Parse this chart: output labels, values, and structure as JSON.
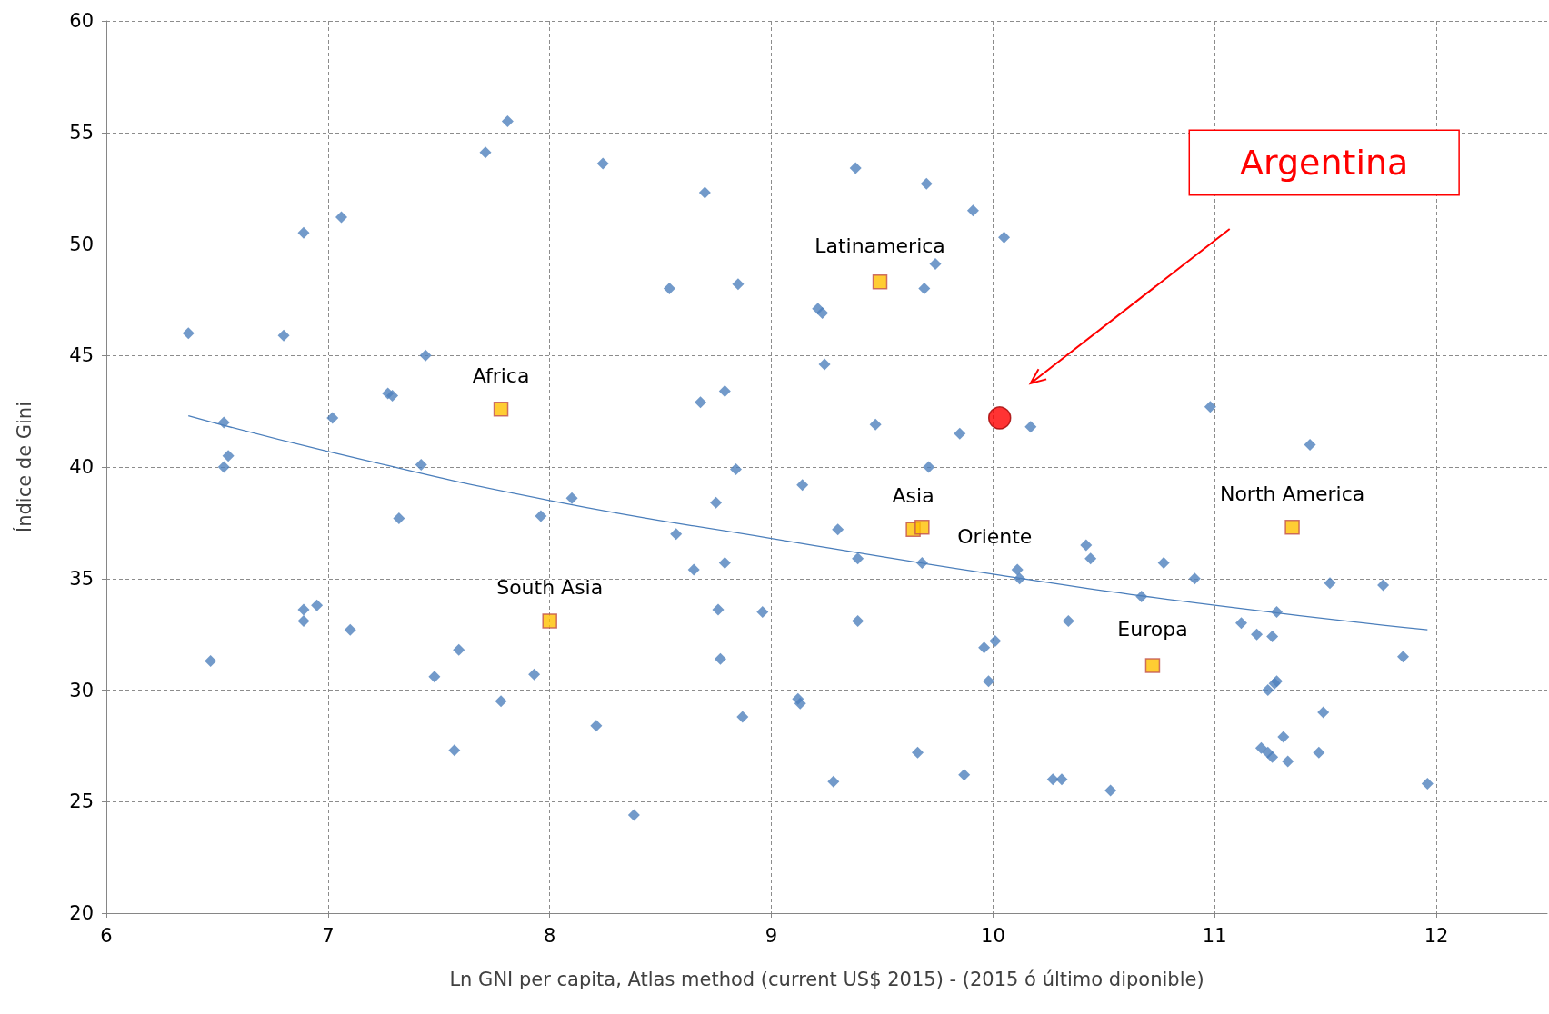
{
  "chart_data": {
    "type": "scatter",
    "xlabel": "Ln GNI per capita, Atlas method (current US$ 2015) - (2015 ó último diponible)",
    "ylabel": "Índice de Gini",
    "xlim": [
      6,
      12.5
    ],
    "xticks": [
      6,
      7,
      8,
      9,
      10,
      11,
      12
    ],
    "ylim": [
      20,
      60
    ],
    "yticks": [
      20,
      25,
      30,
      35,
      40,
      45,
      50,
      55,
      60
    ],
    "grid": true,
    "series": [
      {
        "marker": "diamond",
        "color": "#4f81bd",
        "x": [
          6.37,
          6.53,
          6.55,
          6.53,
          6.47,
          6.89,
          6.8,
          6.89,
          6.89,
          6.95,
          7.02,
          7.06,
          7.1,
          7.27,
          7.29,
          7.44,
          7.42,
          7.32,
          7.48,
          7.59,
          7.57,
          7.71,
          7.81,
          7.78,
          7.93,
          7.96,
          8.1,
          8.24,
          8.21,
          8.38,
          8.54,
          8.57,
          8.7,
          8.68,
          8.79,
          8.85,
          8.84,
          8.75,
          8.65,
          8.79,
          8.76,
          8.77,
          8.87,
          8.96,
          9.14,
          9.21,
          9.23,
          9.24,
          9.3,
          9.12,
          9.13,
          9.28,
          9.38,
          9.39,
          9.39,
          9.47,
          9.7,
          9.69,
          9.74,
          9.71,
          9.68,
          9.66,
          9.91,
          10.05,
          9.85,
          10.17,
          10.11,
          10.12,
          9.96,
          10.01,
          9.98,
          9.87,
          10.27,
          10.31,
          10.34,
          10.42,
          10.44,
          10.53,
          10.67,
          10.77,
          10.91,
          10.98,
          11.12,
          11.19,
          11.26,
          11.28,
          11.24,
          11.27,
          11.28,
          11.21,
          11.24,
          11.26,
          11.31,
          11.33,
          11.43,
          11.49,
          11.47,
          11.52,
          11.76,
          11.85,
          11.96
        ],
        "values": [
          46,
          42,
          40.5,
          40,
          31.3,
          50.5,
          45.9,
          33.6,
          33.1,
          33.8,
          42.2,
          51.2,
          32.7,
          43.3,
          43.2,
          45,
          40.1,
          37.7,
          30.6,
          31.8,
          27.3,
          54.1,
          55.5,
          29.5,
          30.7,
          37.8,
          38.6,
          53.6,
          28.4,
          24.4,
          48,
          37,
          52.3,
          42.9,
          43.4,
          48.2,
          39.9,
          38.4,
          35.4,
          35.7,
          33.6,
          31.4,
          28.8,
          33.5,
          39.2,
          47.1,
          46.9,
          44.6,
          37.2,
          29.6,
          29.4,
          25.9,
          53.4,
          35.9,
          33.1,
          41.9,
          52.7,
          48,
          49.1,
          40,
          35.7,
          27.2,
          51.5,
          50.3,
          41.5,
          41.8,
          35.4,
          35,
          31.9,
          32.2,
          30.4,
          26.2,
          26,
          26,
          33.1,
          36.5,
          35.9,
          25.5,
          34.2,
          35.7,
          35,
          42.7,
          33,
          32.5,
          32.4,
          33.5,
          30,
          30.3,
          30.4,
          27.4,
          27.2,
          27,
          27.9,
          26.8,
          41,
          29,
          27.2,
          34.8,
          34.7,
          31.5,
          25.8
        ]
      },
      {
        "type": "line",
        "marker": "none",
        "color": "#4a7ebb",
        "x": [
          6.37,
          7,
          8,
          9,
          10,
          11,
          11.96
        ],
        "values": [
          42.3,
          40.7,
          38.5,
          36.8,
          35.2,
          33.8,
          32.7
        ]
      },
      {
        "type": "scatter",
        "marker": "square",
        "color": "#ffc000",
        "x": [
          9.49,
          7.78,
          9.64,
          9.68,
          8,
          10.72,
          11.35
        ],
        "values": [
          48.3,
          42.6,
          37.2,
          37.3,
          33.1,
          31.1,
          37.3
        ]
      },
      {
        "type": "scatter",
        "marker": "circle",
        "color": "#ff0000",
        "x": [
          10.03
        ],
        "values": [
          42.2
        ]
      }
    ],
    "annotations": [
      {
        "text": "Latinamerica",
        "x": 9.49,
        "y": 48.3
      },
      {
        "text": "Africa",
        "x": 7.78,
        "y": 42.6
      },
      {
        "text": "Asia",
        "x": 9.64,
        "y": 37.2
      },
      {
        "text": "Oriente",
        "x": 9.68,
        "y": 37.3
      },
      {
        "text": "South Asia",
        "x": 8,
        "y": 33.1
      },
      {
        "text": "Europa",
        "x": 10.72,
        "y": 31.1
      },
      {
        "text": "North America",
        "x": 11.35,
        "y": 37.3
      },
      "Argentina"
    ]
  }
}
